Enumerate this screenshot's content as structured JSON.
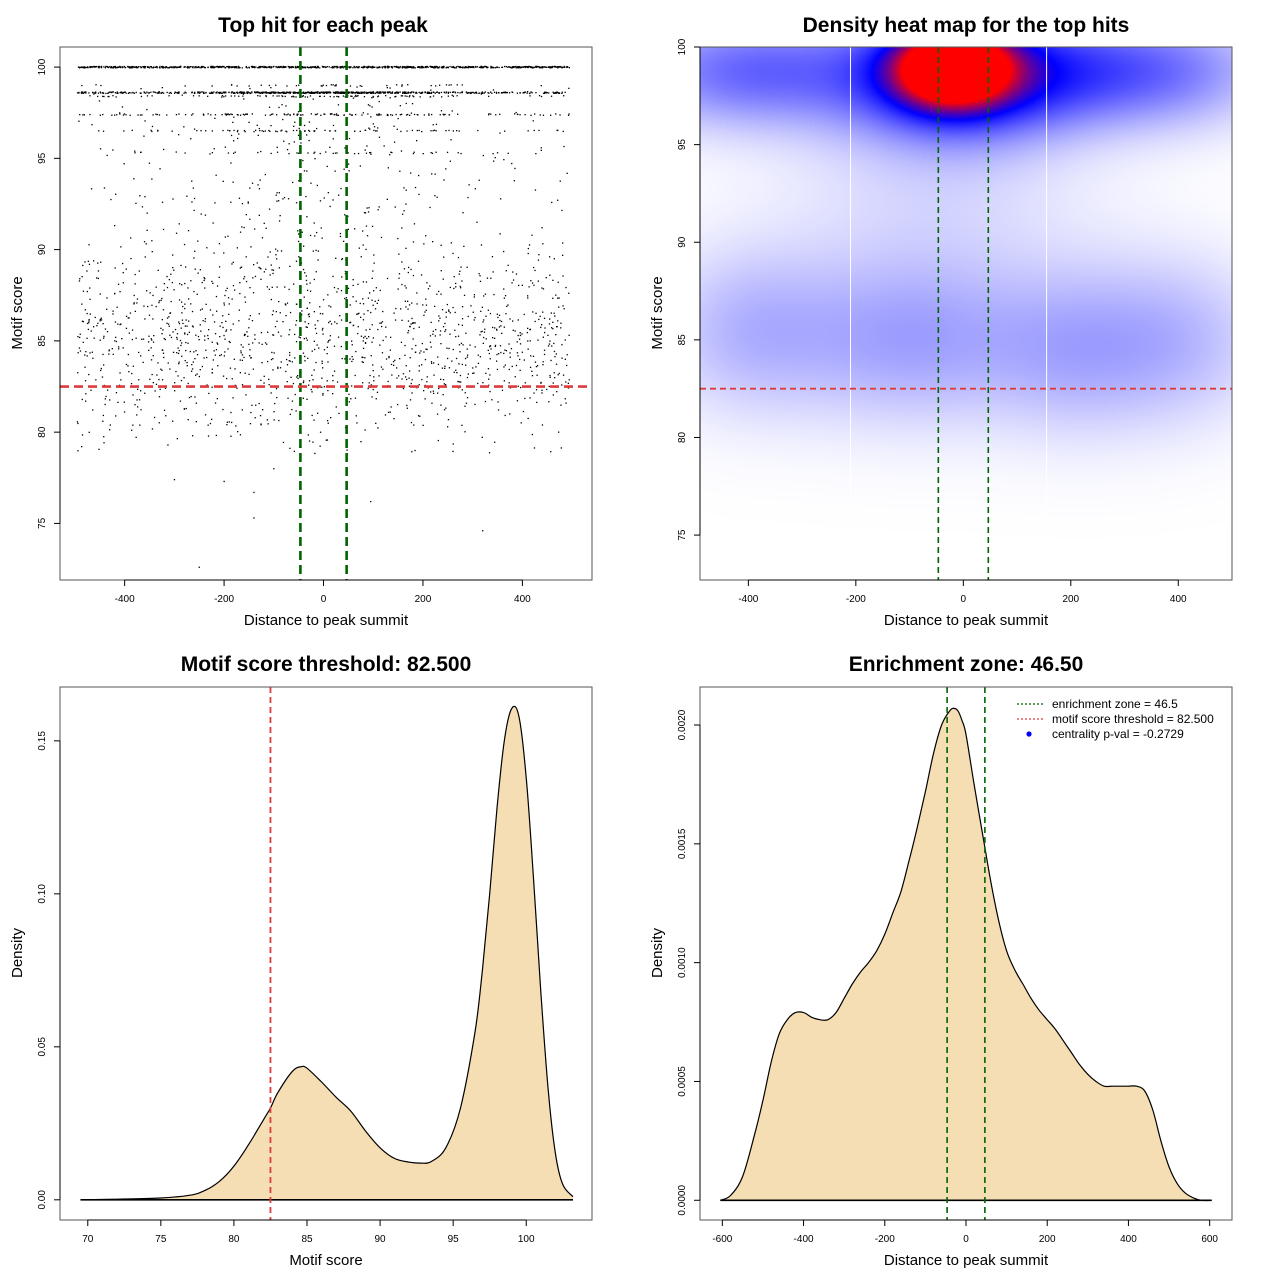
{
  "colors": {
    "zone_line": "#006400",
    "threshold_line": "#DC3C3C",
    "density_fill": "#F5DEB3",
    "heat_low": "#FFFFFF",
    "heat_mid": "#0000FF",
    "heat_high": "#FF0000",
    "centrality_point": "#0000FF"
  },
  "chart_data": [
    {
      "id": "scatter",
      "type": "scatter",
      "title": "Top hit for each peak",
      "xlabel": "Distance to peak summit",
      "ylabel": "Motif score",
      "xlim": [
        -530,
        540
      ],
      "ylim": [
        71.9,
        101.1
      ],
      "xticks": [
        -400,
        -200,
        0,
        200,
        400
      ],
      "xtick_labels": [
        "-400",
        "-200",
        "0",
        "200",
        "400"
      ],
      "yticks": [
        75,
        80,
        85,
        90,
        95,
        100
      ],
      "ytick_labels": [
        "75",
        "80",
        "85",
        "90",
        "95",
        "100"
      ],
      "vlines": [
        -46.5,
        46.5
      ],
      "hline": 82.5,
      "x_range_points": [
        -495,
        495
      ],
      "point_density_description": "dense rows at 100, 98.6, 98.4, 97.4, 96.5; bulk between 80 and 90; sparse outliers down to ~72.6",
      "score_levels": [
        100,
        98.6,
        98.4,
        97.4,
        96.5,
        95.3
      ],
      "outliers": [
        {
          "x": -250,
          "y": 72.6
        },
        {
          "x": 320,
          "y": 74.6
        },
        {
          "x": -140,
          "y": 75.3
        },
        {
          "x": -300,
          "y": 77.4
        },
        {
          "x": -140,
          "y": 76.7
        },
        {
          "x": 95,
          "y": 76.2
        },
        {
          "x": -200,
          "y": 77.3
        },
        {
          "x": -100,
          "y": 78.0
        }
      ]
    },
    {
      "id": "heatmap",
      "type": "heatmap",
      "title": "Density heat map for the top hits",
      "xlabel": "Distance to peak summit",
      "ylabel": "Motif score",
      "xlim": [
        -490,
        500
      ],
      "ylim": [
        72.7,
        100
      ],
      "xticks": [
        -400,
        -200,
        0,
        200,
        400
      ],
      "xtick_labels": [
        "-400",
        "-200",
        "0",
        "200",
        "400"
      ],
      "yticks": [
        75,
        80,
        85,
        90,
        95,
        100
      ],
      "ytick_labels": [
        "75",
        "80",
        "85",
        "90",
        "95",
        "100"
      ],
      "vlines": [
        -46.5,
        46.5
      ],
      "hline": 82.5,
      "grid_vlines": [
        -210,
        155
      ],
      "hotspots": [
        {
          "x": -20,
          "y": 99.0,
          "intensity": 1.0,
          "sx": 70,
          "sy": 1.3
        },
        {
          "x": -20,
          "y": 98.5,
          "intensity": 0.55,
          "sx": 140,
          "sy": 2.2
        },
        {
          "x": -400,
          "y": 98.8,
          "intensity": 0.32,
          "sx": 160,
          "sy": 2.0
        },
        {
          "x": 220,
          "y": 98.8,
          "intensity": 0.3,
          "sx": 150,
          "sy": 2.0
        },
        {
          "x": 420,
          "y": 98.8,
          "intensity": 0.16,
          "sx": 120,
          "sy": 2.0
        },
        {
          "x": -400,
          "y": 85.5,
          "intensity": 0.15,
          "sx": 120,
          "sy": 3.0
        },
        {
          "x": -100,
          "y": 85.0,
          "intensity": 0.19,
          "sx": 150,
          "sy": 3.0
        },
        {
          "x": 200,
          "y": 84.5,
          "intensity": 0.15,
          "sx": 120,
          "sy": 3.0
        },
        {
          "x": 400,
          "y": 85.0,
          "intensity": 0.14,
          "sx": 120,
          "sy": 3.0
        },
        {
          "x": -50,
          "y": 93.0,
          "intensity": 0.08,
          "sx": 200,
          "sy": 4.0
        }
      ]
    },
    {
      "id": "score-density",
      "type": "area",
      "title": "Motif score threshold: 82.500",
      "xlabel": "Motif score",
      "ylabel": "Density",
      "xlim": [
        68.1,
        104.5
      ],
      "ylim": [
        -0.0066,
        0.1676
      ],
      "xticks": [
        70,
        75,
        80,
        85,
        90,
        95,
        100
      ],
      "xtick_labels": [
        "70",
        "75",
        "80",
        "85",
        "90",
        "95",
        "100"
      ],
      "yticks": [
        0,
        0.05,
        0.1,
        0.15
      ],
      "ytick_labels": [
        "0.00",
        "0.05",
        "0.10",
        "0.15"
      ],
      "vline": 82.5,
      "x": [
        69.5,
        72,
        75,
        77,
        78,
        79,
        80,
        81,
        82,
        82.5,
        83,
        84,
        84.6,
        85,
        86,
        87,
        88,
        89,
        90,
        91,
        92,
        92.8,
        93.5,
        94.5,
        95.5,
        96.5,
        97,
        97.5,
        98,
        98.5,
        99,
        99.5,
        100,
        100.5,
        101,
        101.5,
        102,
        102.5,
        103.2
      ],
      "y": [
        0,
        0.0002,
        0.0006,
        0.0015,
        0.003,
        0.006,
        0.011,
        0.018,
        0.026,
        0.03,
        0.035,
        0.042,
        0.0435,
        0.043,
        0.0385,
        0.0335,
        0.029,
        0.0225,
        0.017,
        0.0135,
        0.0123,
        0.012,
        0.0125,
        0.017,
        0.03,
        0.055,
        0.075,
        0.1,
        0.128,
        0.15,
        0.1605,
        0.158,
        0.138,
        0.105,
        0.068,
        0.036,
        0.015,
        0.005,
        0.001
      ]
    },
    {
      "id": "distance-density",
      "type": "area",
      "title": "Enrichment zone: 46.50",
      "xlabel": "Distance to peak summit",
      "ylabel": "Density",
      "xlim": [
        -655,
        655
      ],
      "ylim": [
        -8.3e-05,
        0.00216
      ],
      "xticks": [
        -600,
        -400,
        -200,
        0,
        200,
        400,
        600
      ],
      "xtick_labels": [
        "-600",
        "-400",
        "-200",
        "0",
        "200",
        "400",
        "600"
      ],
      "yticks": [
        0,
        0.0005,
        0.001,
        0.0015,
        0.002
      ],
      "ytick_labels": [
        "0.0000",
        "0.0005",
        "0.0010",
        "0.0015",
        "0.0020"
      ],
      "vlines": [
        -46.5,
        46.5
      ],
      "x": [
        -605,
        -580,
        -550,
        -520,
        -500,
        -480,
        -460,
        -440,
        -420,
        -400,
        -380,
        -360,
        -340,
        -320,
        -300,
        -280,
        -260,
        -240,
        -220,
        -200,
        -180,
        -160,
        -140,
        -120,
        -100,
        -80,
        -60,
        -40,
        -30,
        -20,
        -10,
        0,
        20,
        40,
        60,
        80,
        100,
        120,
        140,
        160,
        180,
        200,
        220,
        240,
        260,
        280,
        300,
        320,
        340,
        360,
        380,
        400,
        420,
        440,
        460,
        480,
        500,
        520,
        540,
        560,
        580,
        605
      ],
      "y": [
        0,
        2e-05,
        0.0001,
        0.00028,
        0.00042,
        0.00058,
        0.0007,
        0.00076,
        0.00079,
        0.00079,
        0.00077,
        0.00076,
        0.00076,
        0.00079,
        0.00085,
        0.00091,
        0.00096,
        0.001,
        0.00105,
        0.00112,
        0.00121,
        0.0013,
        0.00143,
        0.00157,
        0.00172,
        0.00188,
        0.002,
        0.00206,
        0.00207,
        0.00206,
        0.00202,
        0.00196,
        0.00175,
        0.00155,
        0.00135,
        0.00118,
        0.00105,
        0.00097,
        0.00091,
        0.00085,
        0.0008,
        0.00076,
        0.00072,
        0.00067,
        0.00062,
        0.00057,
        0.00053,
        0.0005,
        0.00048,
        0.00048,
        0.00048,
        0.00048,
        0.00048,
        0.00046,
        0.00038,
        0.00025,
        0.00014,
        7e-05,
        3e-05,
        1e-05,
        0,
        0
      ]
    }
  ],
  "legend": {
    "position": "top-right",
    "items": [
      {
        "label": "enrichment zone = 46.5",
        "kind": "dotted-line",
        "color": "#006400"
      },
      {
        "label": "motif score threshold = 82.500",
        "kind": "dotted-line",
        "color": "#DC3C3C"
      },
      {
        "label": "centrality p-val = -0.2729",
        "kind": "point",
        "color": "#0000FF"
      }
    ]
  }
}
